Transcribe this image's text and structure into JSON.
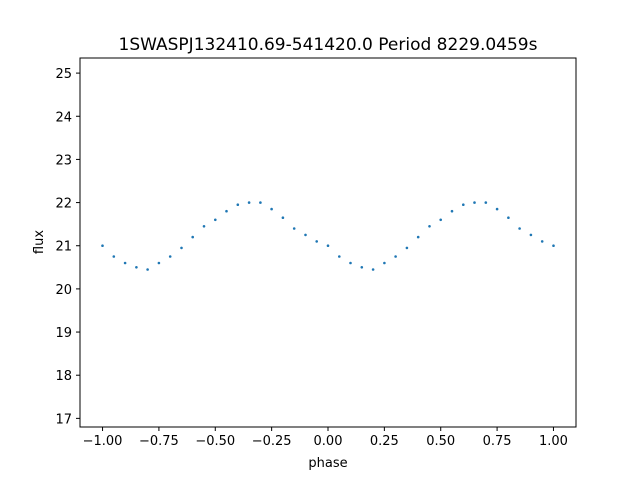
{
  "chart_data": {
    "type": "scatter",
    "title": "1SWASPJ132410.69-541420.0 Period 8229.0459s",
    "xlabel": "phase",
    "ylabel": "flux",
    "xlim": [
      -1.1,
      1.1
    ],
    "ylim": [
      16.8,
      25.35
    ],
    "xticks": [
      -1.0,
      -0.75,
      -0.5,
      -0.25,
      0.0,
      0.25,
      0.5,
      0.75,
      1.0
    ],
    "xtick_labels": [
      "−1.00",
      "−0.75",
      "−0.50",
      "−0.25",
      "0.00",
      "0.25",
      "0.50",
      "0.75",
      "1.00"
    ],
    "yticks": [
      17,
      18,
      19,
      20,
      21,
      22,
      23,
      24,
      25
    ],
    "ytick_labels": [
      "17",
      "18",
      "19",
      "20",
      "21",
      "22",
      "23",
      "24",
      "25"
    ],
    "grid": false,
    "legend": "none",
    "marker_color": "#1f77b4",
    "series": [
      {
        "points": [
          [
            -1.0,
            21.0
          ],
          [
            -0.95,
            20.75
          ],
          [
            -0.9,
            20.6
          ],
          [
            -0.85,
            20.5
          ],
          [
            -0.8,
            20.45
          ],
          [
            -0.75,
            20.6
          ],
          [
            -0.7,
            20.75
          ],
          [
            -0.65,
            20.95
          ],
          [
            -0.6,
            21.2
          ],
          [
            -0.55,
            21.45
          ],
          [
            -0.5,
            21.6
          ],
          [
            -0.45,
            21.8
          ],
          [
            -0.4,
            21.95
          ],
          [
            -0.35,
            22.0
          ],
          [
            -0.3,
            22.0
          ],
          [
            -0.25,
            21.85
          ],
          [
            -0.2,
            21.65
          ],
          [
            -0.15,
            21.4
          ],
          [
            -0.1,
            21.25
          ],
          [
            -0.05,
            21.1
          ],
          [
            0.0,
            21.0
          ],
          [
            0.05,
            20.75
          ],
          [
            0.1,
            20.6
          ],
          [
            0.15,
            20.5
          ],
          [
            0.2,
            20.45
          ],
          [
            0.25,
            20.6
          ],
          [
            0.3,
            20.75
          ],
          [
            0.35,
            20.95
          ],
          [
            0.4,
            21.2
          ],
          [
            0.45,
            21.45
          ],
          [
            0.5,
            21.6
          ],
          [
            0.55,
            21.8
          ],
          [
            0.6,
            21.95
          ],
          [
            0.65,
            22.0
          ],
          [
            0.7,
            22.0
          ],
          [
            0.75,
            21.85
          ],
          [
            0.8,
            21.65
          ],
          [
            0.85,
            21.4
          ],
          [
            0.9,
            21.25
          ],
          [
            0.95,
            21.1
          ],
          [
            1.0,
            21.0
          ]
        ]
      }
    ]
  }
}
